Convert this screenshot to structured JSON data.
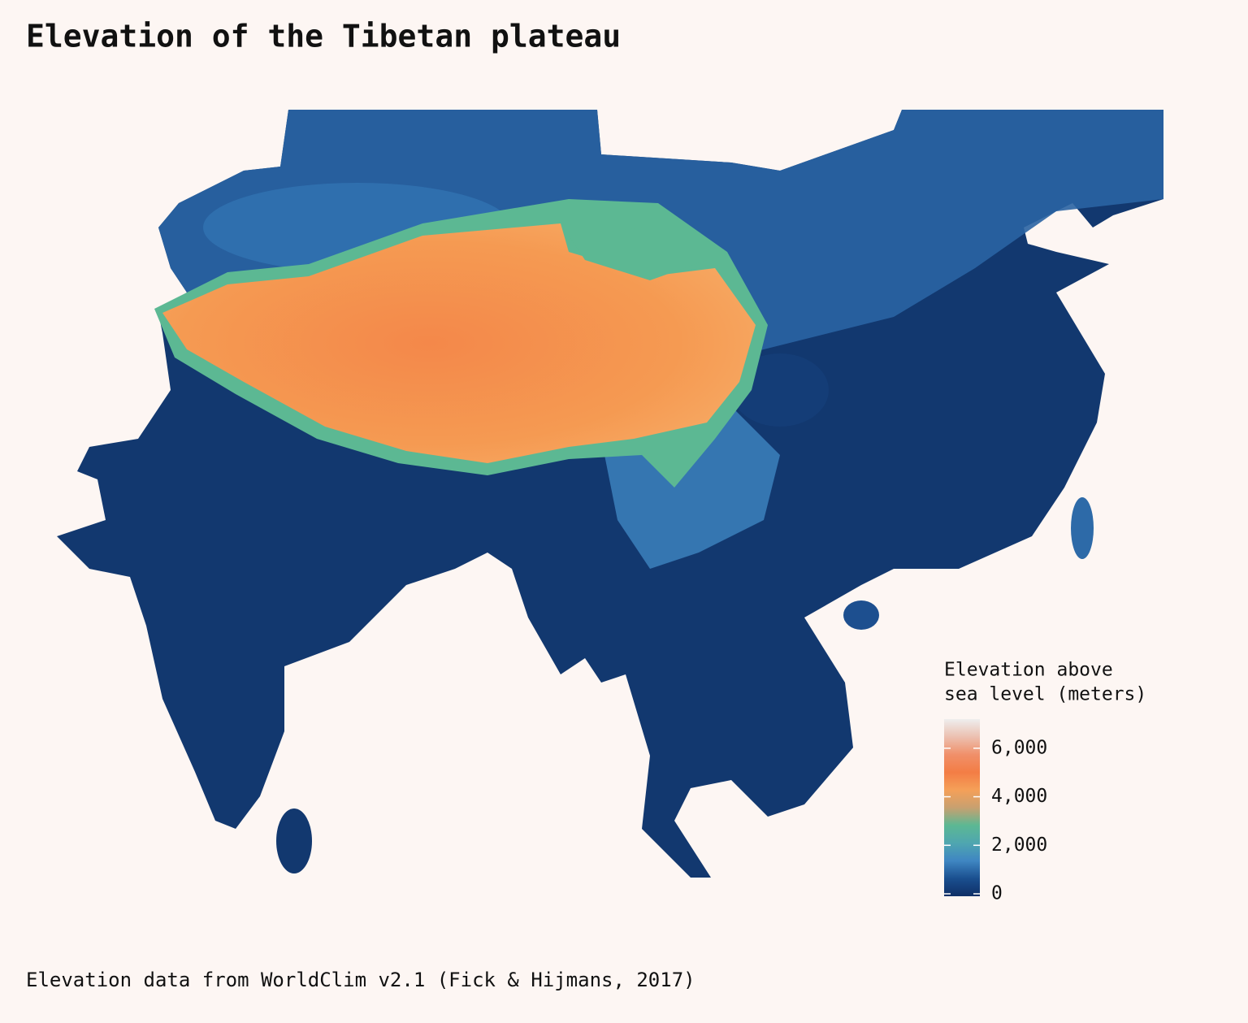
{
  "title": "Elevation of the Tibetan plateau",
  "caption": "Elevation data from WorldClim v2.1 (Fick & Hijmans, 2017)",
  "legend": {
    "title_lines": [
      "Elevation above",
      "sea level (meters)"
    ],
    "range": [
      -100,
      7200
    ],
    "ticks": [
      0,
      {
        "value": 2000,
        "label": "2,000"
      },
      {
        "value": 4000,
        "label": "4,000"
      },
      {
        "value": 6000,
        "label": "6,000"
      }
    ],
    "colors": [
      "#0f2f66",
      "#1a4f8f",
      "#3f86c2",
      "#4fa6b0",
      "#5cb893",
      "#c8a070",
      "#f5a058",
      "#f37d45",
      "#f0906a",
      "#ecc0b0",
      "#eeeeee"
    ]
  }
}
